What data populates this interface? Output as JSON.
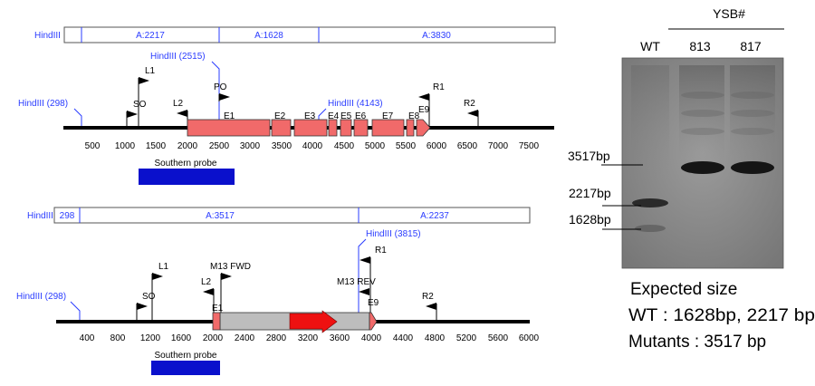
{
  "top_map": {
    "fragment_bar": {
      "label": "HindIII",
      "segments": [
        "A:2217",
        "A:1628",
        "A:3830"
      ]
    },
    "sites": [
      {
        "label": "HindIII (298)",
        "pos": 298
      },
      {
        "label": "HindIII (2515)",
        "pos": 2515
      },
      {
        "label": "HindIII (4143)",
        "pos": 4143
      }
    ],
    "primers": [
      {
        "label": "SO",
        "pos": 1150
      },
      {
        "label": "L1",
        "pos": 1280
      },
      {
        "label": "L2",
        "pos": 1950
      },
      {
        "label": "PO",
        "pos": 2515
      },
      {
        "label": "R1",
        "pos": 5450
      },
      {
        "label": "R2",
        "pos": 6650
      }
    ],
    "exons": [
      {
        "label": "E1",
        "start": 2000,
        "end": 3350
      },
      {
        "label": "E2",
        "start": 3370,
        "end": 3650
      },
      {
        "label": "E3",
        "start": 3700,
        "end": 4260
      },
      {
        "label": "E4",
        "start": 4300,
        "end": 4420
      },
      {
        "label": "E5",
        "start": 4450,
        "end": 4640
      },
      {
        "label": "E6",
        "start": 4680,
        "end": 4880
      },
      {
        "label": "E7",
        "start": 4980,
        "end": 5520
      },
      {
        "label": "E8",
        "start": 5560,
        "end": 5680
      },
      {
        "label": "E9",
        "start": 5720,
        "end": 5950
      }
    ],
    "ticks": [
      "500",
      "1000",
      "1500",
      "2000",
      "2500",
      "3000",
      "3500",
      "4000",
      "4500",
      "5000",
      "5500",
      "6000",
      "6500",
      "7000",
      "7500"
    ],
    "probe_label": "Southern probe"
  },
  "bottom_map": {
    "fragment_bar": {
      "label": "HindIII",
      "segments": [
        "298",
        "A:3517",
        "A:2237"
      ]
    },
    "sites": [
      {
        "label": "HindIII (298)",
        "pos": 298
      },
      {
        "label": "HindIII (3815)",
        "pos": 3815
      }
    ],
    "primers": [
      {
        "label": "SO",
        "pos": 1180
      },
      {
        "label": "L1",
        "pos": 1250
      },
      {
        "label": "L2",
        "pos": 2000
      },
      {
        "label": "M13 FWD",
        "pos": 2100
      },
      {
        "label": "M13 REV",
        "pos": 3800
      },
      {
        "label": "R1",
        "pos": 3850
      },
      {
        "label": "R2",
        "pos": 4700
      }
    ],
    "exons": [
      {
        "label": "E1",
        "start": 2000,
        "end": 2100
      },
      {
        "label": "E9",
        "start": 3940,
        "end": 4050
      }
    ],
    "ticks": [
      "400",
      "800",
      "1200",
      "1600",
      "2000",
      "2400",
      "2800",
      "3200",
      "3600",
      "4000",
      "4400",
      "4800",
      "5200",
      "5600",
      "6000"
    ],
    "probe_label": "Southern probe"
  },
  "gel": {
    "group_label": "YSB#",
    "lanes": [
      "WT",
      "813",
      "817"
    ],
    "markers": [
      "3517bp",
      "2217bp",
      "1628bp"
    ]
  },
  "caption": {
    "line1": "Expected size",
    "line2": "WT : 1628bp, 2217 bp",
    "line3": "Mutants : 3517 bp"
  },
  "colors": {
    "exon_fill": "#f16a6a",
    "probe_fill": "#0a10cc",
    "cassette_fill": "#bdbdbd",
    "arrow_fill": "#ee1111",
    "label_blue": "#2a3cff"
  }
}
